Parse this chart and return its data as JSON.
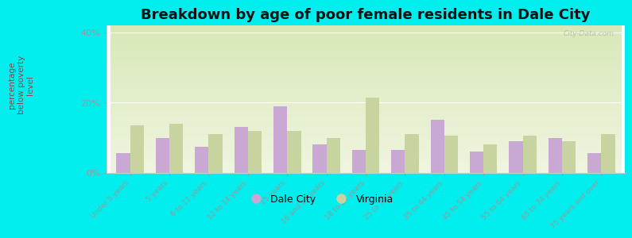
{
  "title": "Breakdown by age of poor female residents in Dale City",
  "ylabel": "percentage\nbelow poverty\nlevel",
  "categories": [
    "Under 5 years",
    "5 years",
    "6 to 11 years",
    "12 to 14 years",
    "15 years",
    "16 and 17 years",
    "18 to 24 years",
    "25 to 34 years",
    "35 to 44 years",
    "45 to 54 years",
    "55 to 64 years",
    "65 to 74 years",
    "75 years and over"
  ],
  "dale_city": [
    5.5,
    10.0,
    7.5,
    13.0,
    19.0,
    8.0,
    6.5,
    6.5,
    15.0,
    6.0,
    9.0,
    10.0,
    5.5
  ],
  "virginia": [
    13.5,
    14.0,
    11.0,
    12.0,
    12.0,
    10.0,
    21.5,
    11.0,
    10.5,
    8.0,
    10.5,
    9.0,
    11.0
  ],
  "dale_city_color": "#c9a8d4",
  "virginia_color": "#c8d4a0",
  "background_top": "#d8e8b8",
  "background_bottom": "#f0f5e0",
  "outer_bg": "#00eeee",
  "ylim": [
    0,
    42
  ],
  "yticks": [
    0,
    20,
    40
  ],
  "ytick_labels": [
    "0%",
    "20%",
    "40%"
  ],
  "title_fontsize": 13,
  "ylabel_color": "#884444",
  "tick_label_color": "#886655",
  "watermark": "City-Data.com"
}
